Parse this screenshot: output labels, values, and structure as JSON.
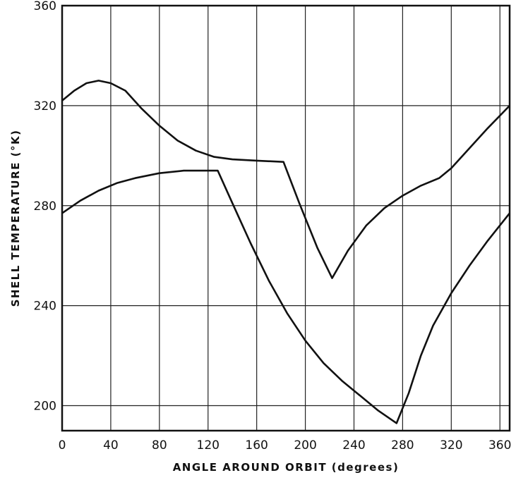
{
  "chart_data": {
    "type": "line",
    "title": "",
    "xlabel": "ANGLE AROUND ORBIT (degrees)",
    "ylabel": "SHELL TEMPERATURE (°K)",
    "xlim": [
      0,
      368
    ],
    "ylim": [
      190,
      360
    ],
    "grid": true,
    "x_ticks": [
      0,
      40,
      80,
      120,
      160,
      200,
      240,
      280,
      320,
      360
    ],
    "y_ticks": [
      200,
      240,
      280,
      320,
      360
    ],
    "series": [
      {
        "points": [
          [
            0,
            322
          ],
          [
            10,
            326
          ],
          [
            20,
            329
          ],
          [
            30,
            330
          ],
          [
            40,
            329
          ],
          [
            52,
            326
          ],
          [
            65,
            319
          ],
          [
            80,
            312
          ],
          [
            95,
            306
          ],
          [
            110,
            302
          ],
          [
            125,
            299.5
          ],
          [
            140,
            298.5
          ],
          [
            160,
            298
          ],
          [
            182,
            297.5
          ],
          [
            195,
            281
          ],
          [
            210,
            263
          ],
          [
            222,
            251
          ],
          [
            235,
            262
          ],
          [
            250,
            272
          ],
          [
            265,
            279
          ],
          [
            280,
            284
          ],
          [
            295,
            288
          ],
          [
            310,
            291
          ],
          [
            320,
            295
          ],
          [
            335,
            303
          ],
          [
            350,
            311
          ],
          [
            368,
            320
          ]
        ]
      },
      {
        "points": [
          [
            0,
            277
          ],
          [
            15,
            282
          ],
          [
            30,
            286
          ],
          [
            45,
            289
          ],
          [
            60,
            291
          ],
          [
            80,
            293
          ],
          [
            100,
            294
          ],
          [
            128,
            294
          ],
          [
            140,
            281
          ],
          [
            155,
            265
          ],
          [
            170,
            250
          ],
          [
            185,
            237
          ],
          [
            200,
            226
          ],
          [
            215,
            217
          ],
          [
            230,
            210
          ],
          [
            245,
            204
          ],
          [
            260,
            198
          ],
          [
            275,
            193
          ],
          [
            285,
            205
          ],
          [
            295,
            220
          ],
          [
            305,
            232
          ],
          [
            320,
            245
          ],
          [
            335,
            256
          ],
          [
            350,
            266
          ],
          [
            368,
            277
          ]
        ]
      }
    ]
  }
}
